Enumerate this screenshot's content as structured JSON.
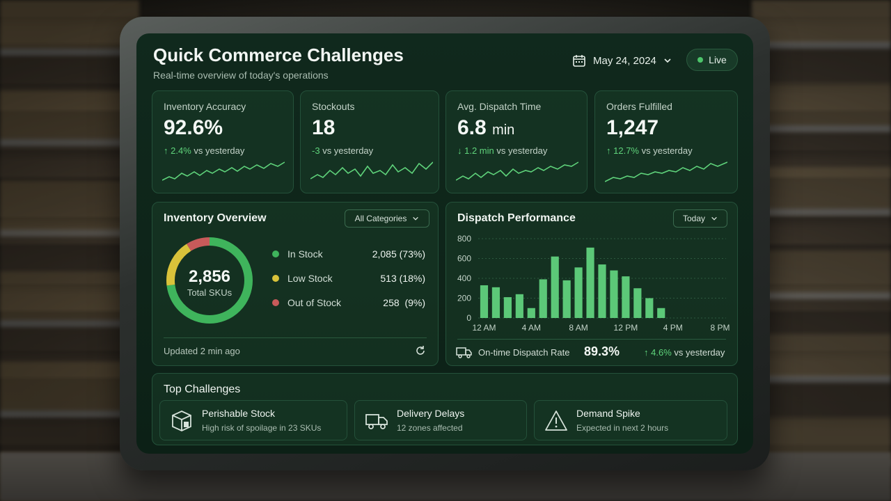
{
  "header": {
    "title": "Quick Commerce Challenges",
    "subtitle": "Real-time overview of today's operations",
    "date": "May 24, 2024",
    "live_label": "Live"
  },
  "kpis": [
    {
      "label": "Inventory Accuracy",
      "value": "92.6%",
      "unit": "",
      "delta_value": "2.4%",
      "delta_text": "vs yesterday",
      "arrow": "↑"
    },
    {
      "label": "Stockouts",
      "value": "18",
      "unit": "",
      "delta_value": "-3",
      "delta_text": "vs yesterday",
      "arrow": ""
    },
    {
      "label": "Avg. Dispatch Time",
      "value": "6.8",
      "unit": "min",
      "delta_value": "1.2 min",
      "delta_text": "vs yesterday",
      "arrow": "↓"
    },
    {
      "label": "Orders Fulfilled",
      "value": "1,247",
      "unit": "",
      "delta_value": "12.7%",
      "delta_text": "vs yesterday",
      "arrow": "↑"
    }
  ],
  "inventory": {
    "title": "Inventory Overview",
    "filter": "All Categories",
    "total": "2,856",
    "total_label": "Total SKUs",
    "legend": [
      {
        "label": "In Stock",
        "value": "2,085",
        "pct": "(73%)",
        "color": "#3fb45c"
      },
      {
        "label": "Low Stock",
        "value": "513",
        "pct": "(18%)",
        "color": "#d9c23a"
      },
      {
        "label": "Out of Stock",
        "value": "258",
        "pct": "(9%)",
        "color": "#c85a5a"
      }
    ],
    "updated": "Updated 2 min ago"
  },
  "dispatch": {
    "title": "Dispatch Performance",
    "filter": "Today",
    "rate_label": "On-time Dispatch Rate",
    "rate_value": "89.3%",
    "rate_delta": "4.6%",
    "rate_delta_text": "vs yesterday"
  },
  "chart_data": {
    "type": "bar",
    "categories": [
      "12 AM",
      "1 AM",
      "2 AM",
      "3 AM",
      "4 AM",
      "5 AM",
      "6 AM",
      "7 AM",
      "8 AM",
      "9 AM",
      "10 AM",
      "11 AM",
      "12 PM",
      "1 PM",
      "2 PM",
      "3 PM",
      "4 PM",
      "5 PM",
      "6 PM",
      "7 PM",
      "8 PM"
    ],
    "values": [
      330,
      310,
      210,
      240,
      100,
      390,
      620,
      380,
      510,
      710,
      540,
      480,
      420,
      300,
      200,
      100,
      0,
      0,
      0,
      0,
      0
    ],
    "tick_labels": [
      "12 AM",
      "4 AM",
      "8 AM",
      "12 PM",
      "4 PM",
      "8 PM"
    ],
    "yticks": [
      0,
      200,
      400,
      600,
      800
    ],
    "ylim": [
      0,
      800
    ],
    "color": "#5cc878"
  },
  "challenges": {
    "title": "Top Challenges",
    "items": [
      {
        "title": "Perishable Stock",
        "desc": "High risk of spoilage in 23 SKUs",
        "icon": "package-alert-icon"
      },
      {
        "title": "Delivery Delays",
        "desc": "12 zones affected",
        "icon": "truck-icon"
      },
      {
        "title": "Demand Spike",
        "desc": "Expected in next 2 hours",
        "icon": "warning-icon"
      }
    ]
  }
}
